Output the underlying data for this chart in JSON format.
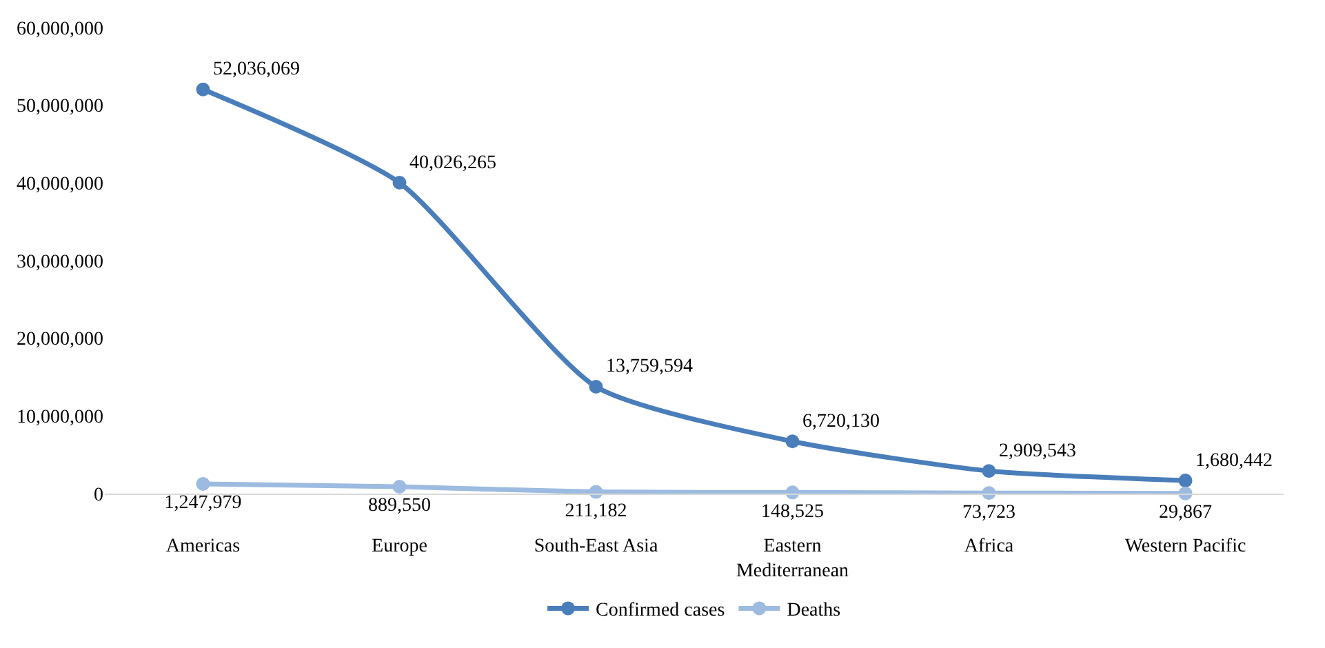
{
  "chart_data": {
    "type": "line",
    "categories": [
      "Americas",
      "Europe",
      "South-East Asia",
      "Eastern Mediterranean",
      "Africa",
      "Western Pacific"
    ],
    "series": [
      {
        "name": "Confirmed cases",
        "color": "#4a7ebb",
        "values": [
          52036069,
          40026265,
          13759594,
          6720130,
          2909543,
          1680442
        ],
        "value_labels": [
          "52,036,069",
          "40,026,265",
          "13,759,594",
          "6,720,130",
          "2,909,543",
          "1,680,442"
        ]
      },
      {
        "name": "Deaths",
        "color": "#9dbbe0",
        "values": [
          1247979,
          889550,
          211182,
          148525,
          73723,
          29867
        ],
        "value_labels": [
          "1,247,979",
          "889,550",
          "211,182",
          "148,525",
          "73,723",
          "29,867"
        ]
      }
    ],
    "ylim": [
      0,
      60000000
    ],
    "yticks": [
      {
        "value": 0,
        "label": "0"
      },
      {
        "value": 10000000,
        "label": "10,000,000"
      },
      {
        "value": 20000000,
        "label": "20,000,000"
      },
      {
        "value": 30000000,
        "label": "30,000,000"
      },
      {
        "value": 40000000,
        "label": "40,000,000"
      },
      {
        "value": 50000000,
        "label": "50,000,000"
      },
      {
        "value": 60000000,
        "label": "60,000,000"
      }
    ],
    "marker": "circle",
    "line_style": "solid",
    "legend": "bottom"
  }
}
